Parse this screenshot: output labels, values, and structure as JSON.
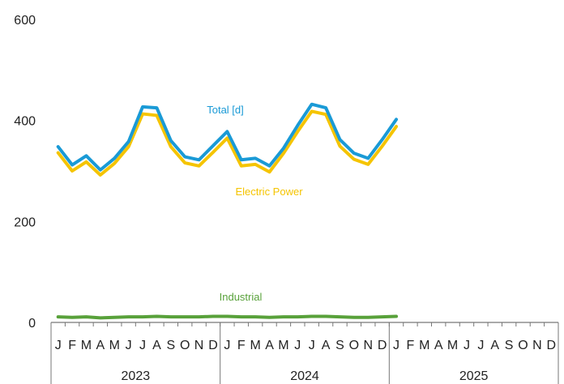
{
  "chart_data": {
    "type": "line",
    "title": "",
    "xlabel": "",
    "ylabel": "",
    "ylim": [
      0,
      600
    ],
    "y_ticks": [
      "0",
      "200",
      "400",
      "600"
    ],
    "month_labels": [
      "J",
      "F",
      "M",
      "A",
      "M",
      "J",
      "J",
      "A",
      "S",
      "O",
      "N",
      "D"
    ],
    "years": [
      "2023",
      "2024",
      "2025"
    ],
    "grid": false,
    "series": [
      {
        "name": "Total [d]",
        "color": "#1a9ad6",
        "values": [
          348,
          312,
          330,
          302,
          325,
          358,
          427,
          425,
          360,
          328,
          322,
          350,
          378,
          322,
          325,
          310,
          345,
          390,
          432,
          425,
          362,
          335,
          325,
          362,
          402
        ]
      },
      {
        "name": "Electric Power",
        "color": "#f5c400",
        "values": [
          336,
          300,
          318,
          292,
          315,
          348,
          413,
          410,
          348,
          316,
          310,
          337,
          365,
          310,
          313,
          298,
          335,
          378,
          418,
          412,
          349,
          323,
          313,
          349,
          388
        ]
      },
      {
        "name": "Industrial",
        "color": "#58a13a",
        "values": [
          11,
          10,
          11,
          9,
          10,
          11,
          11,
          12,
          11,
          11,
          11,
          12,
          12,
          11,
          11,
          10,
          11,
          11,
          12,
          12,
          11,
          10,
          10,
          11,
          12
        ]
      }
    ]
  }
}
